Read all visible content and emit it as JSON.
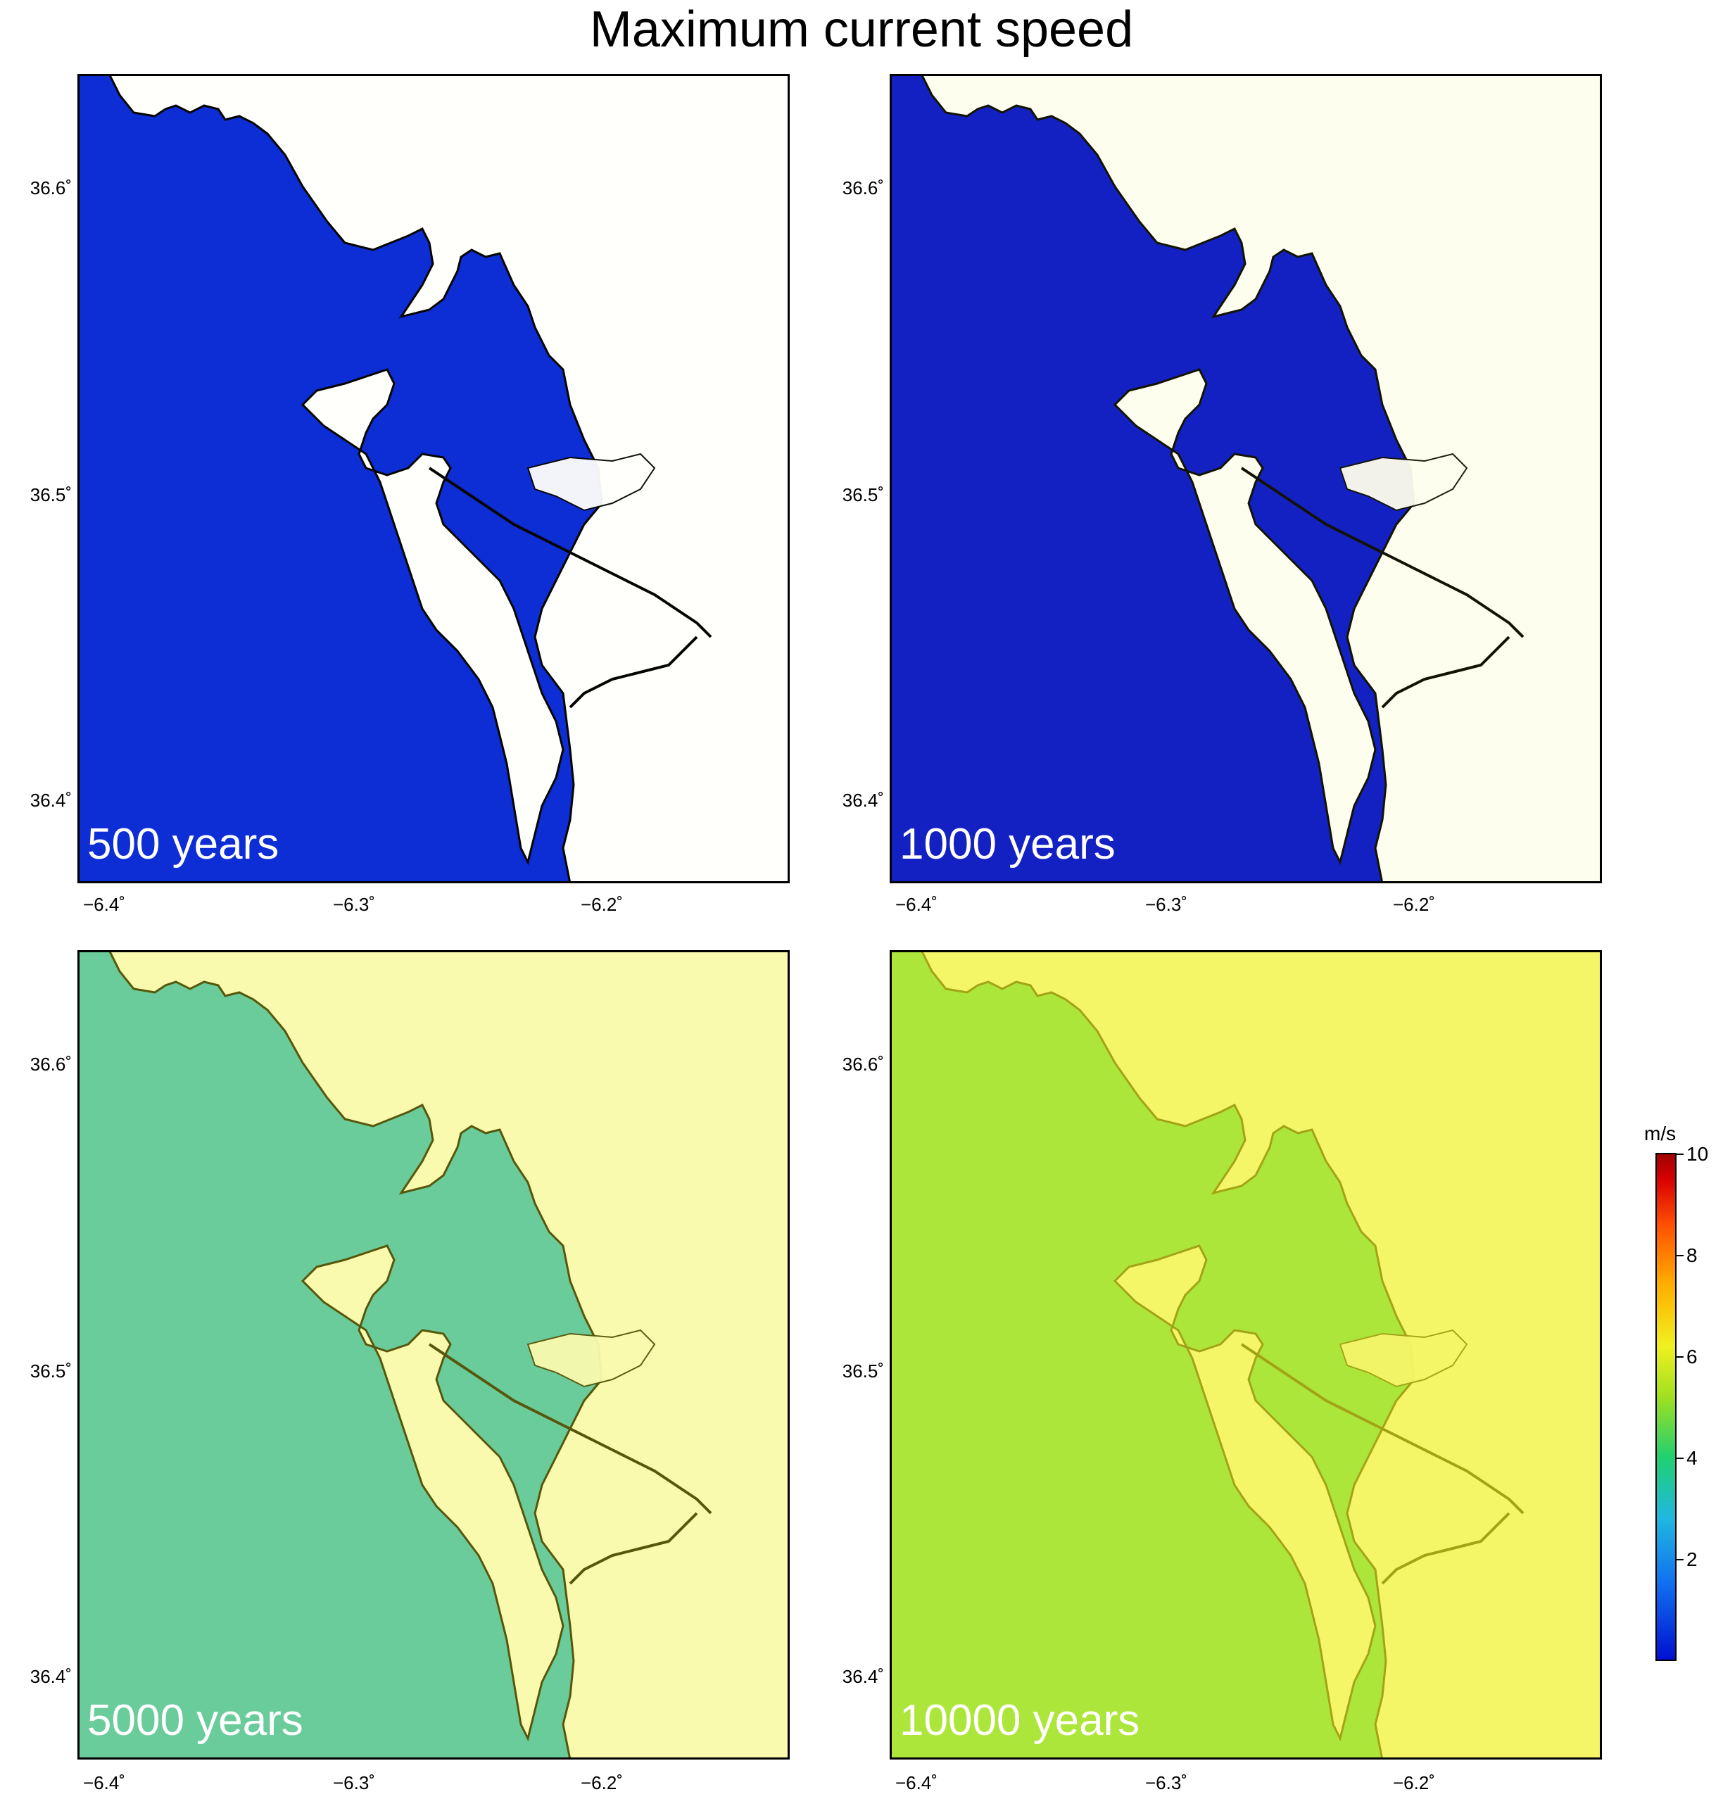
{
  "title": "Maximum current speed",
  "panels": [
    {
      "label": "500 years",
      "level": 0.02
    },
    {
      "label": "1000 years",
      "level": 0.1
    },
    {
      "label": "5000 years",
      "level": 0.45
    },
    {
      "label": "10000 years",
      "level": 0.85
    }
  ],
  "axes": {
    "lat_ticks": [
      "36.4˚",
      "36.5˚",
      "36.6˚"
    ],
    "lon_ticks": [
      "−6.4˚",
      "−6.3˚",
      "−6.2˚"
    ]
  },
  "colorbar": {
    "unit": "m/s",
    "ticks": [
      "2",
      "4",
      "6",
      "8",
      "10"
    ],
    "range": [
      0,
      10
    ],
    "colors": [
      "#0010d0",
      "#1070f0",
      "#20b8e0",
      "#20d070",
      "#a0e020",
      "#f0f020",
      "#ffb000",
      "#ff5000",
      "#d80000",
      "#a00000"
    ]
  },
  "colors": {
    "land": "#ffffff",
    "coastline": "#000000",
    "low_speed": "#0a2ad8"
  }
}
